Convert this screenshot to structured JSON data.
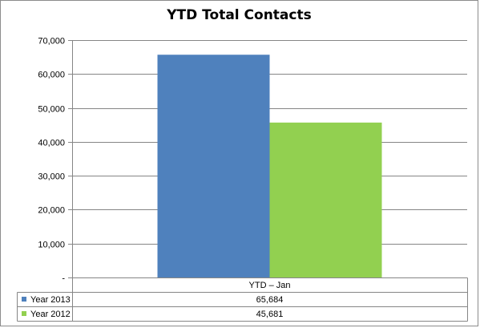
{
  "chart_data": {
    "type": "bar",
    "title": "YTD Total Contacts",
    "categories": [
      "YTD – Jan"
    ],
    "series": [
      {
        "name": "Year 2013",
        "values": [
          65684
        ],
        "value_label": "65,684",
        "color": "#4f81bd"
      },
      {
        "name": "Year 2012",
        "values": [
          45681
        ],
        "value_label": "45,681",
        "color": "#92d050"
      }
    ],
    "ylim": [
      0,
      70000
    ],
    "yticks": [
      0,
      10000,
      20000,
      30000,
      40000,
      50000,
      60000,
      70000
    ],
    "ytick_labels": [
      "-",
      "10,000",
      "20,000",
      "30,000",
      "40,000",
      "50,000",
      "60,000",
      "70,000"
    ],
    "grid": true,
    "legend": "data-table"
  }
}
